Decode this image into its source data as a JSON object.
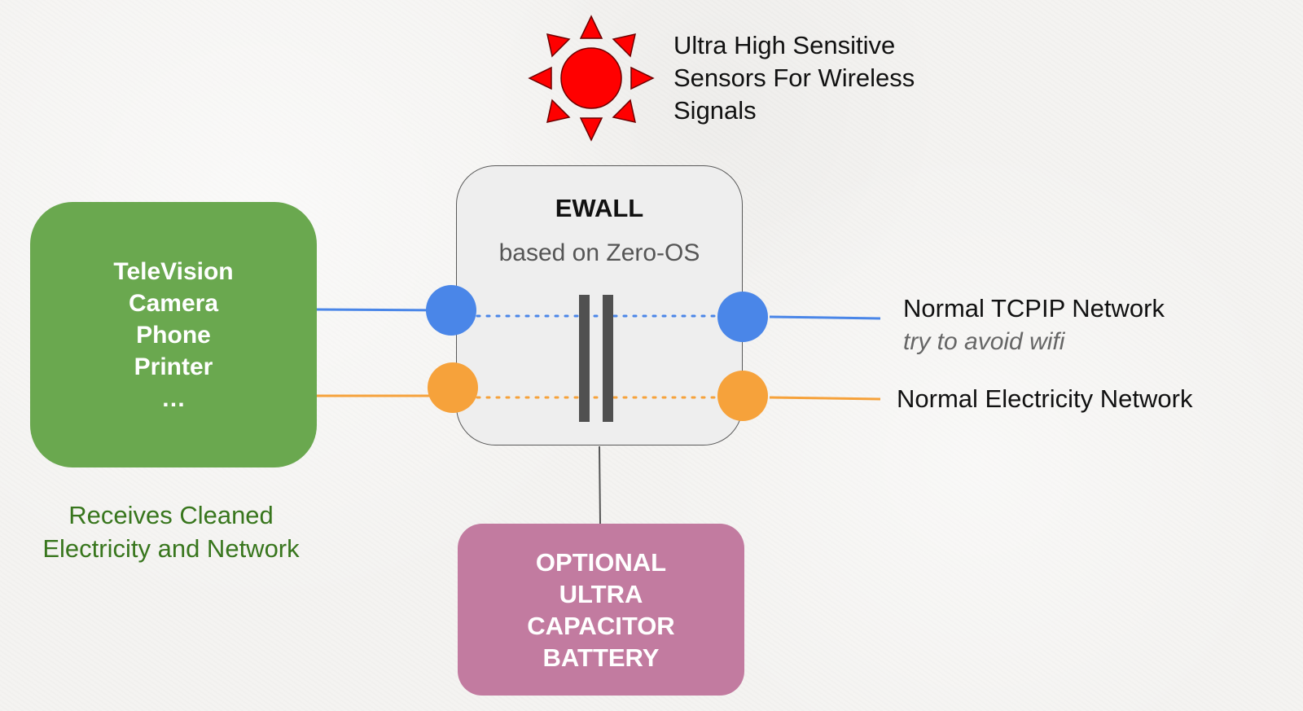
{
  "diagram": {
    "sensor": {
      "icon": "sun-icon",
      "color": "#ff0000",
      "lines": [
        "Ultra High Sensitive",
        "Sensors For Wireless",
        "Signals"
      ]
    },
    "devices": {
      "color": "#6aa84f",
      "lines": [
        "TeleVision",
        "Camera",
        "Phone",
        "Printer",
        "…"
      ],
      "caption_lines": [
        "Receives Cleaned",
        "Electricity and Network"
      ],
      "caption_color": "#38761d"
    },
    "ewall": {
      "title": "EWALL",
      "subtitle": "based on Zero-OS",
      "box_color": "#eeeeee",
      "separator_icon": "parallel-bars-icon"
    },
    "connections": {
      "network": {
        "label": "Normal TCPIP Network",
        "sublabel": "try to avoid wifi",
        "color": "#4a86e8"
      },
      "electricity": {
        "label": "Normal Electricity Network",
        "color": "#f6a23b"
      }
    },
    "battery": {
      "lines": [
        "OPTIONAL",
        "ULTRA",
        "CAPACITOR",
        "BATTERY"
      ],
      "color": "#c27ba0"
    }
  }
}
